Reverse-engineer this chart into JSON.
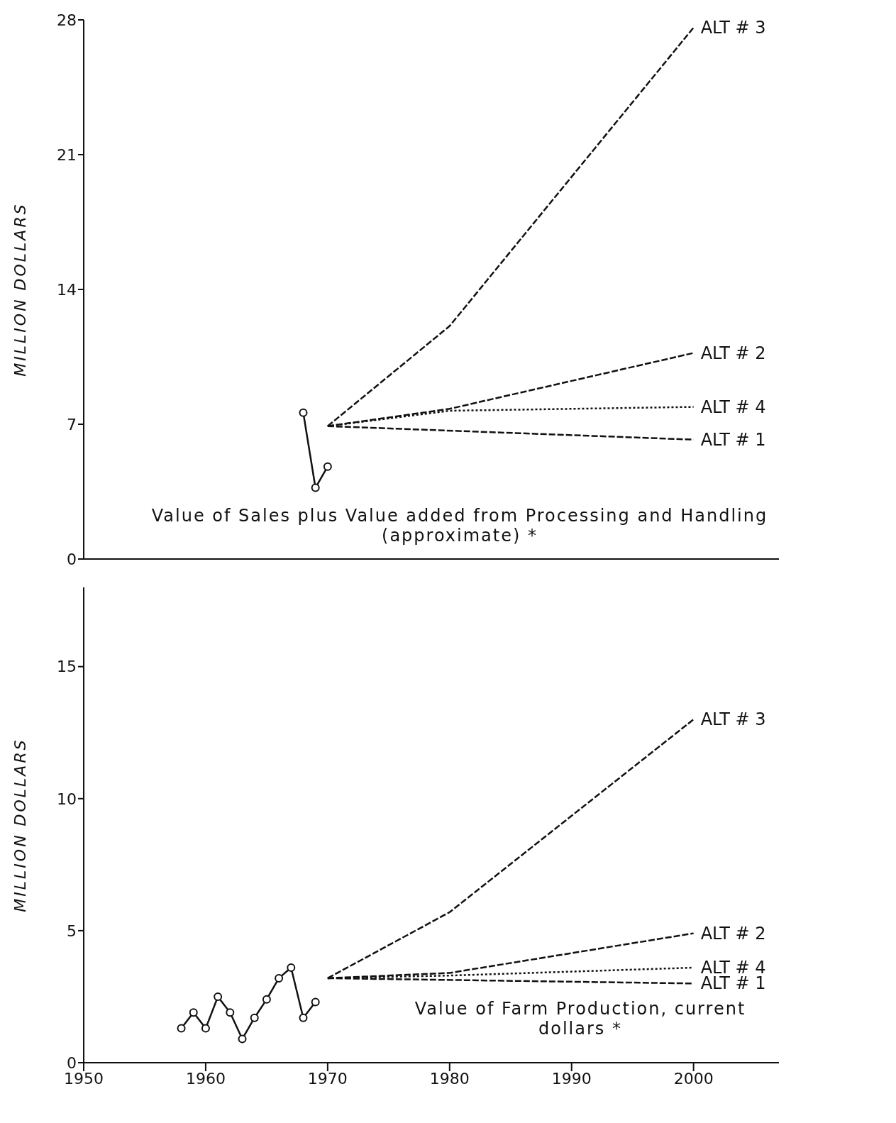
{
  "chart_data": [
    {
      "type": "line",
      "ylabel": "MILLION DOLLARS",
      "xlim": [
        1950,
        2007
      ],
      "xticks": [
        1950,
        1960,
        1970,
        1980,
        1990,
        2000
      ],
      "ylim": [
        0,
        28
      ],
      "yticks": [
        0,
        7,
        14,
        21,
        28
      ],
      "tick_labels": "y",
      "grid": false,
      "legend": false,
      "annotations": [
        "Value of Sales plus Value added from Processing and Handling (approximate) *"
      ],
      "series": [
        {
          "color": "#111111",
          "marker": "circle",
          "line_style": "solid",
          "x": [
            1968,
            1969,
            1970
          ],
          "values": [
            7.6,
            3.7,
            4.8
          ]
        },
        {
          "name": "ALT # 3",
          "color": "#111111",
          "marker": "none",
          "line_style": "dashed",
          "x": [
            1970,
            1980,
            2000
          ],
          "values": [
            6.9,
            12.1,
            27.6
          ]
        },
        {
          "name": "ALT # 2",
          "color": "#111111",
          "marker": "none",
          "line_style": "dashed",
          "x": [
            1970,
            1980,
            2000
          ],
          "values": [
            6.9,
            7.8,
            10.7
          ]
        },
        {
          "name": "ALT # 4",
          "color": "#111111",
          "marker": "none",
          "line_style": "dotted",
          "x": [
            1970,
            1980,
            2000
          ],
          "values": [
            6.9,
            7.7,
            7.9
          ]
        },
        {
          "name": "ALT # 1",
          "color": "#111111",
          "marker": "none",
          "line_style": "dashed",
          "x": [
            1970,
            2000
          ],
          "values": [
            6.9,
            6.2
          ]
        }
      ]
    },
    {
      "type": "line",
      "ylabel": "MILLION DOLLARS",
      "xlim": [
        1950,
        2007
      ],
      "xticks": [
        1950,
        1960,
        1970,
        1980,
        1990,
        2000
      ],
      "ylim": [
        0,
        18
      ],
      "yticks": [
        0,
        5,
        10,
        15
      ],
      "grid": false,
      "legend": false,
      "annotations": [
        "Value of Farm Production, current dollars *"
      ],
      "series": [
        {
          "color": "#111111",
          "marker": "circle",
          "line_style": "solid",
          "x": [
            1958,
            1959,
            1960,
            1961,
            1962,
            1963,
            1964,
            1965,
            1966,
            1967,
            1968,
            1969
          ],
          "values": [
            1.3,
            1.9,
            1.3,
            2.5,
            1.9,
            0.9,
            1.7,
            2.4,
            3.2,
            3.6,
            1.7,
            2.3
          ]
        },
        {
          "name": "ALT # 3",
          "color": "#111111",
          "marker": "none",
          "line_style": "dashed",
          "x": [
            1970,
            1980,
            2000
          ],
          "values": [
            3.2,
            5.7,
            13.0
          ]
        },
        {
          "name": "ALT # 2",
          "color": "#111111",
          "marker": "none",
          "line_style": "dashed",
          "x": [
            1970,
            1980,
            2000
          ],
          "values": [
            3.2,
            3.4,
            4.9
          ]
        },
        {
          "name": "ALT # 4",
          "color": "#111111",
          "marker": "none",
          "line_style": "dotted",
          "x": [
            1970,
            1980,
            2000
          ],
          "values": [
            3.2,
            3.3,
            3.6
          ]
        },
        {
          "name": "ALT # 1",
          "color": "#111111",
          "marker": "none",
          "line_style": "dashed",
          "x": [
            1970,
            2000
          ],
          "values": [
            3.2,
            3.0
          ]
        }
      ]
    }
  ]
}
